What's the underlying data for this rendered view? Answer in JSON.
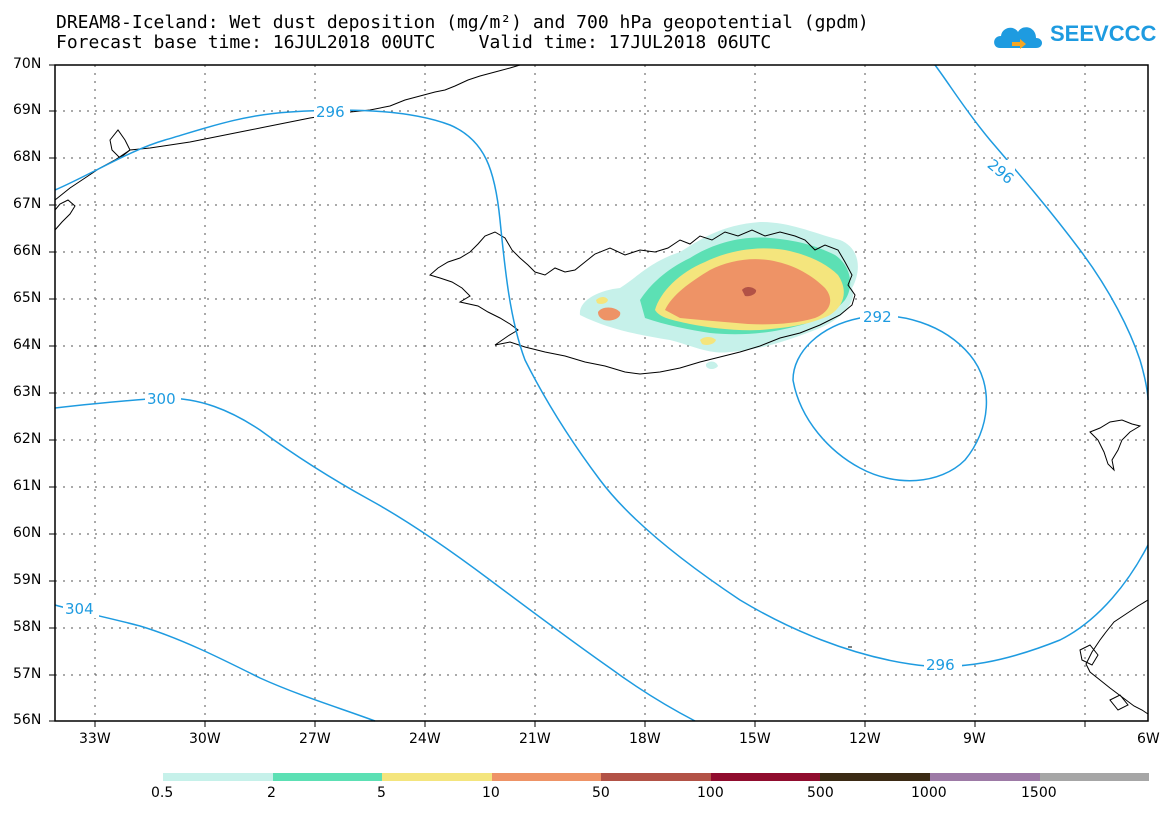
{
  "title": {
    "line1": "DREAM8-Iceland: Wet dust deposition (mg/m²) and 700 hPa geopotential (gpdm)",
    "line2": "Forecast base time: 16JUL2018 00UTC    Valid time: 17JUL2018 06UTC"
  },
  "logo": {
    "text": "SEEVCCC",
    "color": "#1e9be0"
  },
  "axes": {
    "lat_labels": [
      "70N",
      "69N",
      "68N",
      "67N",
      "66N",
      "65N",
      "64N",
      "63N",
      "62N",
      "61N",
      "60N",
      "59N",
      "58N",
      "57N",
      "56N"
    ],
    "lon_labels": [
      "33W",
      "30W",
      "27W",
      "24W",
      "21W",
      "18W",
      "15W",
      "12W",
      "9W",
      "6W"
    ]
  },
  "contours": {
    "color": "#1e9be0",
    "labels": [
      "296",
      "300",
      "304",
      "292",
      "296",
      "296"
    ]
  },
  "legend": {
    "colors": [
      "#c6f1ea",
      "#5ce0b4",
      "#f4e57d",
      "#ee9366",
      "#b25246",
      "#900c2e",
      "#3b2a14",
      "#9d7aa6",
      "#a6a6a6"
    ],
    "labels": [
      "0.5",
      "2",
      "5",
      "10",
      "50",
      "100",
      "500",
      "1000",
      "1500"
    ]
  }
}
